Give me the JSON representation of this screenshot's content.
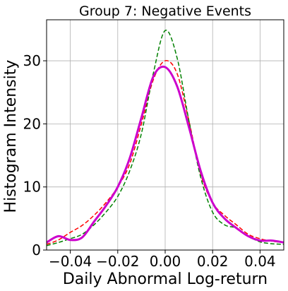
{
  "chart_data": {
    "type": "line",
    "title": "Group 7: Negative Events",
    "xlabel": "Daily Abnormal Log-return",
    "ylabel": "Histogram Intensity",
    "xlim": [
      -0.05,
      0.05
    ],
    "ylim": [
      0,
      36.5
    ],
    "xticks": [
      -0.04,
      -0.02,
      0.0,
      0.02,
      0.04
    ],
    "xtick_labels": [
      "−0.04",
      "−0.02",
      "0.00",
      "0.02",
      "0.04"
    ],
    "yticks": [
      0,
      10,
      20,
      30
    ],
    "ytick_labels": [
      "0",
      "10",
      "20",
      "30"
    ],
    "grid": true,
    "series": [
      {
        "color": "#ff0000",
        "style": "dashed",
        "width": 1.5,
        "x": [
          -0.05,
          -0.045,
          -0.04,
          -0.035,
          -0.03,
          -0.025,
          -0.02,
          -0.015,
          -0.01,
          -0.005,
          0.0,
          0.005,
          0.01,
          0.015,
          0.02,
          0.025,
          0.03,
          0.035,
          0.04,
          0.045,
          0.05
        ],
        "y": [
          0.9,
          1.6,
          2.8,
          3.9,
          5.5,
          7.5,
          10.0,
          13.6,
          20.0,
          27.0,
          30.0,
          28.0,
          20.5,
          12.0,
          7.5,
          5.5,
          4.0,
          2.5,
          1.8,
          1.4,
          1.2
        ]
      },
      {
        "color": "#008000",
        "style": "dashed",
        "width": 1.5,
        "x": [
          -0.05,
          -0.045,
          -0.04,
          -0.035,
          -0.03,
          -0.025,
          -0.02,
          -0.015,
          -0.01,
          -0.005,
          0.0,
          0.005,
          0.01,
          0.015,
          0.02,
          0.025,
          0.03,
          0.035,
          0.04,
          0.045,
          0.05
        ],
        "y": [
          0.7,
          1.2,
          1.8,
          2.5,
          4.0,
          6.0,
          8.5,
          12.5,
          18.5,
          28.0,
          34.8,
          30.5,
          20.5,
          11.5,
          6.0,
          4.0,
          3.5,
          2.2,
          1.3,
          1.0,
          0.9
        ]
      },
      {
        "color": "#cc00cc",
        "style": "solid",
        "width": 3,
        "x": [
          -0.05,
          -0.045,
          -0.04,
          -0.035,
          -0.03,
          -0.025,
          -0.02,
          -0.015,
          -0.01,
          -0.005,
          0.0,
          0.005,
          0.01,
          0.015,
          0.02,
          0.025,
          0.03,
          0.035,
          0.04,
          0.045,
          0.05
        ],
        "y": [
          1.2,
          2.2,
          1.6,
          2.0,
          4.5,
          7.0,
          10.0,
          14.5,
          21.0,
          27.5,
          29.0,
          26.0,
          19.5,
          12.5,
          7.5,
          5.0,
          3.5,
          2.2,
          1.5,
          1.5,
          1.2
        ]
      }
    ]
  }
}
